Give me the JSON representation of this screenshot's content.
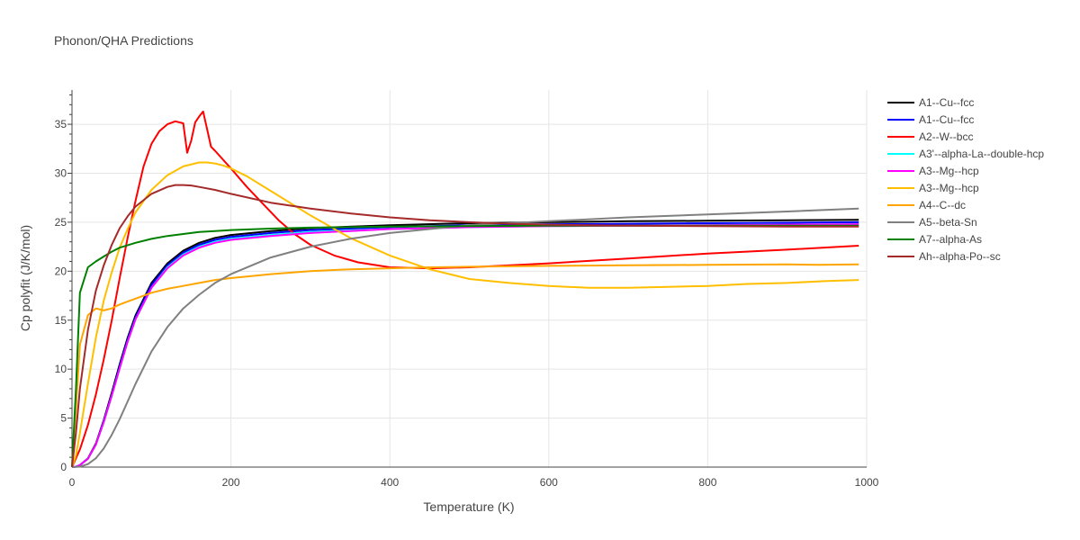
{
  "chart_data": {
    "type": "line",
    "title": "Phonon/QHA Predictions",
    "xlabel": "Temperature (K)",
    "ylabel": "Cp polyfit (J/K/mol)",
    "xlim": [
      0,
      1000
    ],
    "ylim": [
      0,
      38.5
    ],
    "xticks": [
      0,
      200,
      400,
      600,
      800,
      1000
    ],
    "yticks": [
      0,
      5,
      10,
      15,
      20,
      25,
      30,
      35
    ],
    "grid": true,
    "legend_position": "right",
    "series": [
      {
        "name": "A1--Cu--fcc",
        "color": "#000000",
        "x": [
          0,
          5,
          10,
          20,
          30,
          40,
          50,
          60,
          70,
          80,
          100,
          120,
          140,
          160,
          180,
          200,
          250,
          300,
          400,
          500,
          600,
          700,
          800,
          900,
          990
        ],
        "y": [
          0,
          0.05,
          0.2,
          0.9,
          2.4,
          4.8,
          7.6,
          10.5,
          13.2,
          15.5,
          18.8,
          20.8,
          22.1,
          22.9,
          23.4,
          23.7,
          24.1,
          24.4,
          24.7,
          24.9,
          25.0,
          25.1,
          25.15,
          25.2,
          25.25
        ]
      },
      {
        "name": "A1--Cu--fcc",
        "color": "#0000ff",
        "x": [
          0,
          5,
          10,
          20,
          30,
          40,
          50,
          60,
          70,
          80,
          100,
          120,
          140,
          160,
          180,
          200,
          250,
          300,
          400,
          500,
          600,
          700,
          800,
          900,
          990
        ],
        "y": [
          0,
          0.05,
          0.2,
          0.85,
          2.3,
          4.7,
          7.4,
          10.3,
          13.0,
          15.3,
          18.6,
          20.6,
          21.9,
          22.7,
          23.2,
          23.5,
          23.9,
          24.2,
          24.5,
          24.7,
          24.8,
          24.85,
          24.9,
          24.95,
          25.0
        ]
      },
      {
        "name": "A2--W--bcc",
        "color": "#ff0000",
        "x": [
          0,
          10,
          20,
          30,
          40,
          50,
          60,
          70,
          80,
          90,
          100,
          110,
          120,
          130,
          140,
          145,
          150,
          155,
          160,
          165,
          170,
          175,
          180,
          200,
          220,
          240,
          260,
          280,
          300,
          330,
          360,
          400,
          450,
          500,
          600,
          700,
          800,
          900,
          990
        ],
        "y": [
          0,
          1.8,
          4.3,
          7.4,
          11.0,
          15.0,
          19.3,
          23.4,
          27.2,
          30.7,
          33.0,
          34.3,
          35.0,
          35.3,
          35.1,
          32.1,
          33.3,
          35.2,
          35.8,
          36.3,
          34.5,
          32.7,
          32.3,
          30.5,
          28.6,
          26.9,
          25.2,
          23.8,
          22.7,
          21.6,
          20.9,
          20.4,
          20.3,
          20.4,
          20.8,
          21.3,
          21.8,
          22.2,
          22.6
        ]
      },
      {
        "name": "A3'--alpha-La--double-hcp",
        "color": "#00ffff",
        "x": [
          0,
          5,
          10,
          20,
          30,
          40,
          50,
          60,
          70,
          80,
          100,
          120,
          140,
          160,
          180,
          200,
          250,
          300,
          400,
          500,
          600,
          700,
          800,
          900,
          990
        ],
        "y": [
          0,
          0.05,
          0.2,
          0.85,
          2.3,
          4.6,
          7.3,
          10.1,
          12.8,
          15.1,
          18.3,
          20.4,
          21.7,
          22.5,
          23.0,
          23.3,
          23.7,
          24.0,
          24.3,
          24.5,
          24.6,
          24.65,
          24.7,
          24.75,
          24.8
        ]
      },
      {
        "name": "A3--Mg--hcp",
        "color": "#ff00ff",
        "x": [
          0,
          5,
          10,
          20,
          30,
          40,
          50,
          60,
          70,
          80,
          100,
          120,
          140,
          160,
          180,
          200,
          250,
          300,
          400,
          500,
          600,
          700,
          800,
          900,
          990
        ],
        "y": [
          0,
          0.05,
          0.2,
          0.85,
          2.3,
          4.6,
          7.3,
          10.1,
          12.8,
          15.1,
          18.3,
          20.3,
          21.6,
          22.4,
          22.9,
          23.2,
          23.6,
          23.9,
          24.3,
          24.5,
          24.6,
          24.65,
          24.7,
          24.75,
          24.8
        ]
      },
      {
        "name": "A3--Mg--hcp",
        "color": "#ffbf00",
        "x": [
          0,
          5,
          10,
          20,
          30,
          40,
          50,
          60,
          70,
          80,
          100,
          120,
          140,
          160,
          170,
          180,
          190,
          200,
          220,
          250,
          300,
          350,
          400,
          450,
          500,
          550,
          600,
          650,
          700,
          750,
          800,
          850,
          900,
          950,
          990
        ],
        "y": [
          0,
          1.2,
          3.5,
          8.5,
          13.2,
          17.0,
          19.9,
          22.4,
          24.3,
          26.0,
          28.3,
          29.8,
          30.7,
          31.1,
          31.1,
          31.0,
          30.8,
          30.5,
          29.7,
          28.2,
          25.7,
          23.4,
          21.6,
          20.2,
          19.2,
          18.8,
          18.5,
          18.3,
          18.3,
          18.4,
          18.5,
          18.7,
          18.8,
          19.0,
          19.1
        ]
      },
      {
        "name": "A4--C--dc",
        "color": "#ffa500",
        "x": [
          0,
          5,
          10,
          20,
          30,
          40,
          50,
          60,
          80,
          100,
          120,
          140,
          160,
          180,
          200,
          250,
          300,
          350,
          400,
          450,
          500,
          550,
          600,
          700,
          800,
          900,
          940,
          990
        ],
        "y": [
          0,
          6.0,
          12.5,
          15.5,
          16.2,
          16.0,
          16.2,
          16.6,
          17.2,
          17.8,
          18.2,
          18.5,
          18.8,
          19.1,
          19.3,
          19.7,
          20.0,
          20.2,
          20.3,
          20.4,
          20.45,
          20.5,
          20.55,
          20.6,
          20.65,
          20.7,
          20.65,
          20.7
        ]
      },
      {
        "name": "A5--beta-Sn",
        "color": "#808080",
        "x": [
          0,
          10,
          20,
          30,
          40,
          50,
          60,
          70,
          80,
          100,
          120,
          140,
          160,
          180,
          200,
          250,
          300,
          350,
          400,
          450,
          500,
          600,
          700,
          800,
          900,
          990
        ],
        "y": [
          0,
          0.05,
          0.3,
          0.9,
          1.9,
          3.3,
          4.9,
          6.7,
          8.5,
          11.8,
          14.3,
          16.2,
          17.6,
          18.8,
          19.7,
          21.4,
          22.5,
          23.3,
          23.9,
          24.3,
          24.7,
          25.1,
          25.5,
          25.8,
          26.1,
          26.4
        ]
      },
      {
        "name": "A7--alpha-As",
        "color": "#008000",
        "x": [
          0,
          5,
          10,
          20,
          30,
          40,
          50,
          60,
          80,
          100,
          120,
          140,
          160,
          180,
          200,
          250,
          300,
          400,
          500,
          600,
          700,
          800,
          900,
          990
        ],
        "y": [
          0,
          8.0,
          17.8,
          20.4,
          21.0,
          21.5,
          22.0,
          22.4,
          22.9,
          23.3,
          23.6,
          23.8,
          24.0,
          24.1,
          24.2,
          24.35,
          24.45,
          24.55,
          24.6,
          24.65,
          24.65,
          24.65,
          24.65,
          24.65
        ]
      },
      {
        "name": "Ah--alpha-Po--sc",
        "color": "#a52a2a",
        "x": [
          0,
          5,
          10,
          20,
          30,
          40,
          50,
          60,
          70,
          80,
          100,
          120,
          130,
          140,
          150,
          160,
          180,
          200,
          250,
          300,
          350,
          400,
          450,
          500,
          550,
          600,
          650,
          700,
          800,
          900,
          990
        ],
        "y": [
          0,
          3.5,
          8.0,
          14.0,
          18.0,
          20.6,
          22.7,
          24.4,
          25.6,
          26.6,
          27.9,
          28.6,
          28.8,
          28.8,
          28.75,
          28.6,
          28.3,
          27.9,
          27.0,
          26.4,
          25.9,
          25.5,
          25.2,
          25.0,
          24.85,
          24.75,
          24.7,
          24.65,
          24.6,
          24.55,
          24.55
        ]
      }
    ]
  }
}
